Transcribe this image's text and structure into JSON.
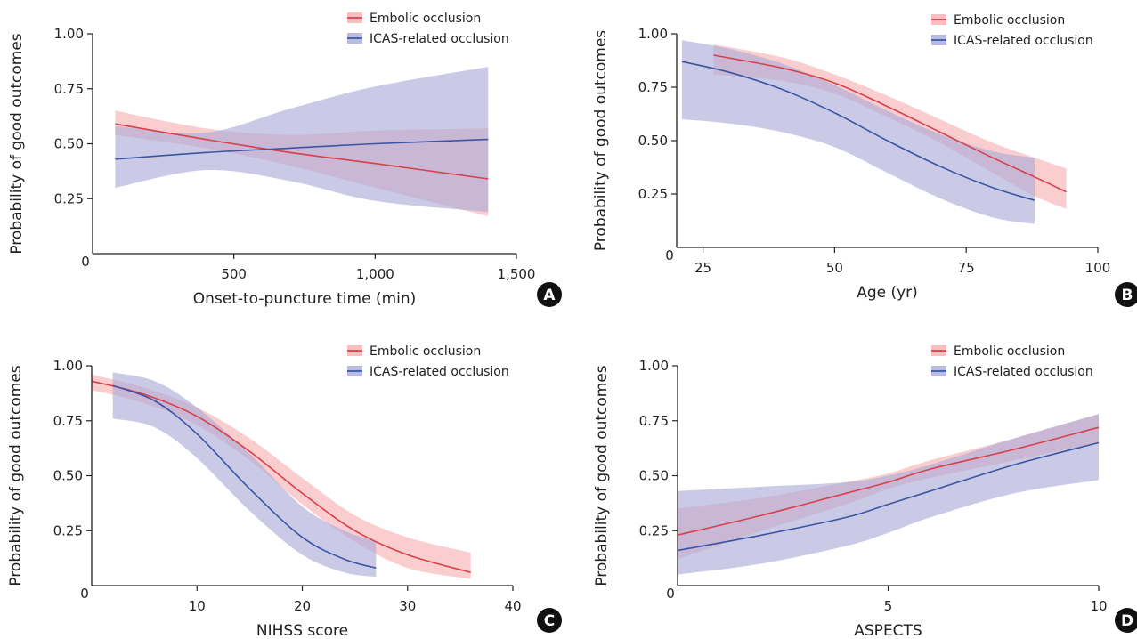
{
  "figure": {
    "colors": {
      "embolic_line": "#d9404a",
      "embolic_band": "#f7aeb2",
      "icas_line": "#3a55a4",
      "icas_band": "#aaaad8",
      "axis": "#222222",
      "badge": "#111111"
    }
  },
  "chart_data": [
    {
      "type": "line",
      "panel": "A",
      "xlabel": "Onset-to-puncture time (min)",
      "ylabel": "Probability of good outcomes",
      "xlim": [
        0,
        1500
      ],
      "ylim": [
        0,
        1
      ],
      "x_ticks": [
        500,
        1000,
        1500
      ],
      "x_tick_labels": [
        "500",
        "1,000",
        "1,500"
      ],
      "y_ticks": [
        0.25,
        0.5,
        0.75,
        1.0
      ],
      "y_tick_labels": [
        "0.25",
        "0.50",
        "0.75",
        "1.00"
      ],
      "origin_label": "0",
      "legend": "top-right",
      "series": [
        {
          "name": "Embolic occlusion",
          "x": [
            80,
            400,
            700,
            1000,
            1400
          ],
          "y": [
            0.59,
            0.52,
            0.46,
            0.41,
            0.34
          ],
          "lower": [
            0.54,
            0.48,
            0.4,
            0.3,
            0.17
          ],
          "upper": [
            0.65,
            0.57,
            0.54,
            0.56,
            0.57
          ]
        },
        {
          "name": "ICAS-related occlusion",
          "x": [
            80,
            400,
            700,
            1000,
            1400
          ],
          "y": [
            0.43,
            0.46,
            0.48,
            0.5,
            0.52
          ],
          "lower": [
            0.3,
            0.38,
            0.33,
            0.24,
            0.19
          ],
          "upper": [
            0.58,
            0.55,
            0.66,
            0.76,
            0.85
          ]
        }
      ]
    },
    {
      "type": "line",
      "panel": "B",
      "xlabel": "Age (yr)",
      "ylabel": "Probability of good outcomes",
      "xlim": [
        20,
        100
      ],
      "ylim": [
        0,
        1
      ],
      "x_ticks": [
        25,
        50,
        75,
        100
      ],
      "x_tick_labels": [
        "25",
        "50",
        "75",
        "100"
      ],
      "y_ticks": [
        0.25,
        0.5,
        0.75,
        1.0
      ],
      "y_tick_labels": [
        "0.25",
        "0.50",
        "0.75",
        "1.00"
      ],
      "origin_label": "0",
      "legend": "top-right",
      "series": [
        {
          "name": "Embolic occlusion",
          "x": [
            27,
            40,
            50,
            60,
            70,
            80,
            88,
            94
          ],
          "y": [
            0.9,
            0.84,
            0.77,
            0.66,
            0.54,
            0.42,
            0.33,
            0.26
          ],
          "lower": [
            0.81,
            0.78,
            0.72,
            0.61,
            0.49,
            0.35,
            0.24,
            0.18
          ],
          "upper": [
            0.95,
            0.89,
            0.81,
            0.71,
            0.6,
            0.49,
            0.42,
            0.37
          ]
        },
        {
          "name": "ICAS-related occlusion",
          "x": [
            21,
            30,
            40,
            50,
            60,
            70,
            80,
            88
          ],
          "y": [
            0.87,
            0.82,
            0.74,
            0.63,
            0.5,
            0.38,
            0.28,
            0.22
          ],
          "lower": [
            0.6,
            0.58,
            0.54,
            0.47,
            0.35,
            0.23,
            0.14,
            0.11
          ],
          "upper": [
            0.97,
            0.93,
            0.86,
            0.76,
            0.64,
            0.53,
            0.45,
            0.42
          ]
        }
      ]
    },
    {
      "type": "line",
      "panel": "C",
      "xlabel": "NIHSS score",
      "ylabel": "Probability of good outcomes",
      "xlim": [
        0,
        40
      ],
      "ylim": [
        0,
        1
      ],
      "x_ticks": [
        10,
        20,
        30,
        40
      ],
      "x_tick_labels": [
        "10",
        "20",
        "30",
        "40"
      ],
      "y_ticks": [
        0.25,
        0.5,
        0.75,
        1.0
      ],
      "y_tick_labels": [
        "0.25",
        "0.50",
        "0.75",
        "1.00"
      ],
      "origin_label": "0",
      "legend": "top-right",
      "series": [
        {
          "name": "Embolic occlusion",
          "x": [
            0,
            5,
            10,
            15,
            20,
            25,
            30,
            36
          ],
          "y": [
            0.93,
            0.87,
            0.77,
            0.61,
            0.42,
            0.25,
            0.14,
            0.06
          ],
          "lower": [
            0.89,
            0.83,
            0.73,
            0.57,
            0.37,
            0.2,
            0.08,
            0.03
          ],
          "upper": [
            0.96,
            0.9,
            0.81,
            0.67,
            0.49,
            0.32,
            0.22,
            0.15
          ]
        },
        {
          "name": "ICAS-related occlusion",
          "x": [
            2,
            6,
            10,
            15,
            20,
            24,
            27
          ],
          "y": [
            0.91,
            0.84,
            0.69,
            0.44,
            0.22,
            0.12,
            0.08
          ],
          "lower": [
            0.76,
            0.72,
            0.58,
            0.34,
            0.14,
            0.06,
            0.04
          ],
          "upper": [
            0.97,
            0.93,
            0.81,
            0.6,
            0.36,
            0.25,
            0.2
          ]
        }
      ]
    },
    {
      "type": "line",
      "panel": "D",
      "xlabel": "ASPECTS",
      "ylabel": "Probability of good outcomes",
      "xlim": [
        0,
        10
      ],
      "ylim": [
        0,
        1
      ],
      "x_ticks": [
        5,
        10
      ],
      "x_tick_labels": [
        "5",
        "10"
      ],
      "y_ticks": [
        0.25,
        0.5,
        0.75,
        1.0
      ],
      "y_tick_labels": [
        "0.25",
        "0.50",
        "0.75",
        "1.00"
      ],
      "origin_label": "0",
      "legend": "top-right",
      "series": [
        {
          "name": "Embolic occlusion",
          "x": [
            0,
            2,
            4,
            5,
            6,
            8,
            10
          ],
          "y": [
            0.23,
            0.32,
            0.42,
            0.47,
            0.53,
            0.62,
            0.72
          ],
          "lower": [
            0.12,
            0.25,
            0.37,
            0.44,
            0.49,
            0.57,
            0.65
          ],
          "upper": [
            0.35,
            0.4,
            0.47,
            0.51,
            0.57,
            0.67,
            0.78
          ]
        },
        {
          "name": "ICAS-related occlusion",
          "x": [
            0,
            2,
            4,
            5,
            6,
            8,
            10
          ],
          "y": [
            0.16,
            0.23,
            0.31,
            0.37,
            0.43,
            0.55,
            0.65
          ],
          "lower": [
            0.05,
            0.1,
            0.18,
            0.24,
            0.31,
            0.42,
            0.48
          ],
          "upper": [
            0.43,
            0.45,
            0.47,
            0.5,
            0.55,
            0.67,
            0.78
          ]
        }
      ]
    }
  ]
}
